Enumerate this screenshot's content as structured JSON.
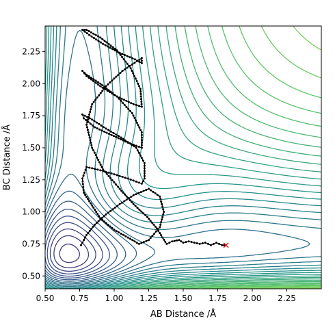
{
  "chart_data": {
    "type": "contour",
    "xlabel": "AB Distance /Å",
    "ylabel": "BC Distance /Å",
    "xlim": [
      0.5,
      2.5
    ],
    "ylim": [
      0.4,
      2.45
    ],
    "xticks": [
      "0.50",
      "0.75",
      "1.00",
      "1.25",
      "1.50",
      "1.75",
      "2.00",
      "2.25"
    ],
    "yticks": [
      "0.50",
      "0.75",
      "1.00",
      "1.25",
      "1.50",
      "1.75",
      "2.00",
      "2.25"
    ],
    "grid": false,
    "colormap": [
      "#440154",
      "#3b528b",
      "#21918c",
      "#5ec962",
      "#fde725"
    ],
    "trajectory_color": "#000000",
    "end_marker": {
      "symbol": "x",
      "color": "#ff0000",
      "x": 1.81,
      "y": 0.74
    },
    "trajectory": [
      [
        0.76,
        0.74
      ],
      [
        0.8,
        0.82
      ],
      [
        0.86,
        0.9
      ],
      [
        0.94,
        0.98
      ],
      [
        1.04,
        1.06
      ],
      [
        1.14,
        1.13
      ],
      [
        1.25,
        1.18
      ],
      [
        1.33,
        1.12
      ],
      [
        1.36,
        1.0
      ],
      [
        1.33,
        0.88
      ],
      [
        1.25,
        0.78
      ],
      [
        1.18,
        0.75
      ],
      [
        1.1,
        0.8
      ],
      [
        1.0,
        0.86
      ],
      [
        0.9,
        0.95
      ],
      [
        0.84,
        1.05
      ],
      [
        0.78,
        1.15
      ],
      [
        0.77,
        1.26
      ],
      [
        0.8,
        1.35
      ],
      [
        0.88,
        1.33
      ],
      [
        0.98,
        1.3
      ],
      [
        1.1,
        1.26
      ],
      [
        1.2,
        1.22
      ],
      [
        1.22,
        1.26
      ],
      [
        1.22,
        1.38
      ],
      [
        1.16,
        1.5
      ],
      [
        1.05,
        1.58
      ],
      [
        0.94,
        1.65
      ],
      [
        0.84,
        1.72
      ],
      [
        0.77,
        1.76
      ],
      [
        0.78,
        1.73
      ],
      [
        0.86,
        1.66
      ],
      [
        0.98,
        1.6
      ],
      [
        1.1,
        1.54
      ],
      [
        1.2,
        1.5
      ],
      [
        1.2,
        1.62
      ],
      [
        1.13,
        1.77
      ],
      [
        1.02,
        1.9
      ],
      [
        0.9,
        2.0
      ],
      [
        0.8,
        2.07
      ],
      [
        0.77,
        2.1
      ],
      [
        0.8,
        2.06
      ],
      [
        0.9,
        1.98
      ],
      [
        1.02,
        1.9
      ],
      [
        1.14,
        1.84
      ],
      [
        1.2,
        1.82
      ],
      [
        1.19,
        1.96
      ],
      [
        1.12,
        2.12
      ],
      [
        1.02,
        2.26
      ],
      [
        0.9,
        2.36
      ],
      [
        0.8,
        2.42
      ],
      [
        0.77,
        2.42
      ],
      [
        0.82,
        2.38
      ],
      [
        0.92,
        2.31
      ],
      [
        1.04,
        2.24
      ],
      [
        1.15,
        2.19
      ],
      [
        1.2,
        2.16
      ],
      [
        1.2,
        2.2
      ],
      [
        1.06,
        2.1
      ],
      [
        0.94,
        1.98
      ],
      [
        0.84,
        1.84
      ],
      [
        0.8,
        1.68
      ],
      [
        0.84,
        1.5
      ],
      [
        0.92,
        1.33
      ],
      [
        1.04,
        1.18
      ],
      [
        1.14,
        1.06
      ],
      [
        1.24,
        0.96
      ],
      [
        1.31,
        0.87
      ],
      [
        1.35,
        0.8
      ],
      [
        1.38,
        0.75
      ],
      [
        1.42,
        0.77
      ],
      [
        1.47,
        0.78
      ],
      [
        1.5,
        0.76
      ],
      [
        1.54,
        0.77
      ],
      [
        1.58,
        0.76
      ],
      [
        1.62,
        0.75
      ],
      [
        1.66,
        0.76
      ],
      [
        1.7,
        0.74
      ],
      [
        1.74,
        0.76
      ],
      [
        1.78,
        0.74
      ],
      [
        1.81,
        0.74
      ]
    ]
  }
}
